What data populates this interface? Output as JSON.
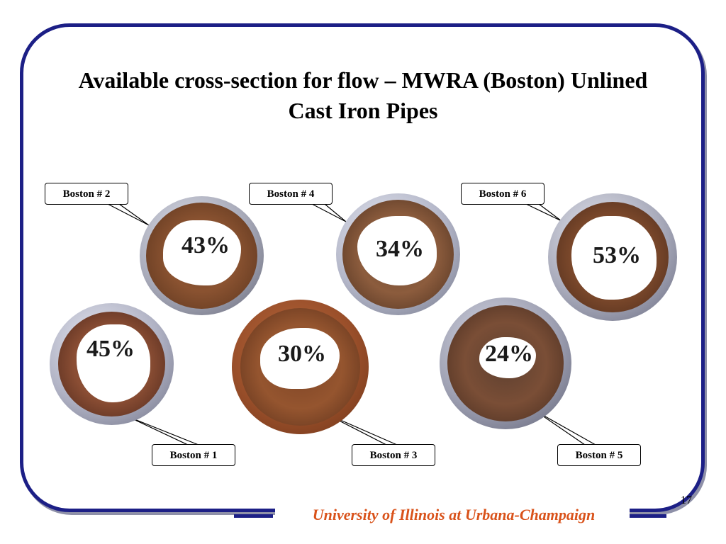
{
  "slide": {
    "title": "Available cross-section for flow – MWRA (Boston) Unlined\nCast Iron Pipes",
    "footer": "University of Illinois at Urbana-Champaign",
    "page_number": "17"
  },
  "pipes": [
    {
      "label": "Boston # 2",
      "percent": "43%"
    },
    {
      "label": "Boston # 4",
      "percent": "34%"
    },
    {
      "label": "Boston # 6",
      "percent": "53%"
    },
    {
      "label": "Boston # 1",
      "percent": "45%"
    },
    {
      "label": "Boston # 3",
      "percent": "30%"
    },
    {
      "label": "Boston # 5",
      "percent": "24%"
    }
  ],
  "colors": {
    "frame": "#1c1f86",
    "footer_text": "#d9521a",
    "rust": "#7a4a2e"
  }
}
